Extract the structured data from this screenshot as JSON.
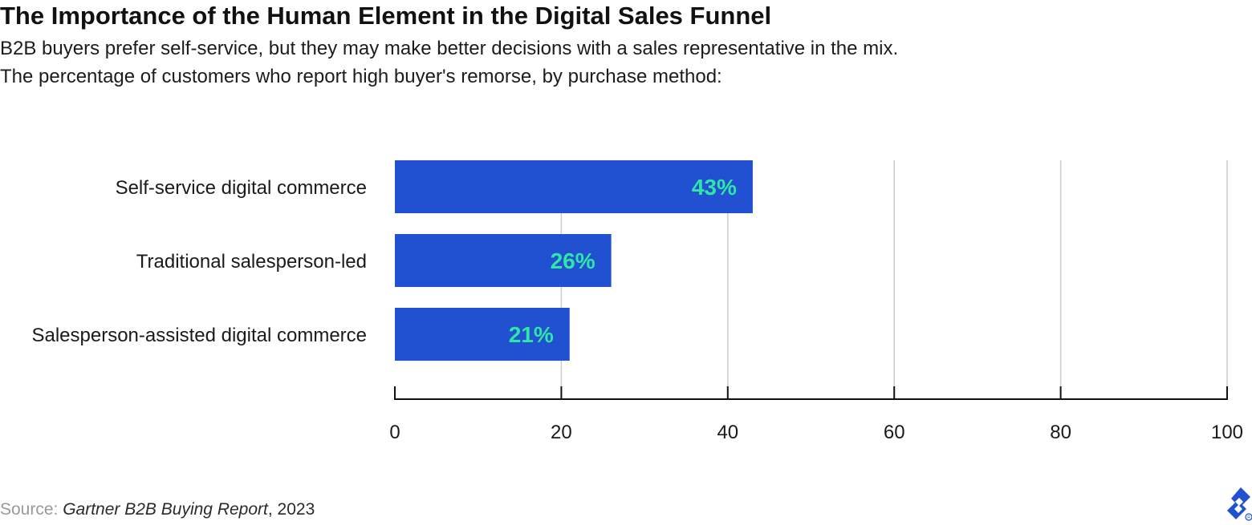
{
  "header": {
    "title": "The Importance of the Human Element in the Digital Sales Funnel",
    "subtitle_line1": "B2B buyers prefer self-service, but they may make better decisions with a sales representative in the mix.",
    "subtitle_line2": "The percentage of customers who report high buyer's remorse, by purchase method:"
  },
  "chart_data": {
    "type": "bar",
    "orientation": "horizontal",
    "categories": [
      "Self-service digital commerce",
      "Traditional salesperson-led",
      "Salesperson-assisted digital commerce"
    ],
    "values": [
      43,
      26,
      21
    ],
    "data_labels": [
      "43%",
      "26%",
      "21%"
    ],
    "xlim": [
      0,
      100
    ],
    "xticks": [
      0,
      20,
      40,
      60,
      80,
      100
    ],
    "grid": "vertical",
    "bar_color": "#2150d0",
    "label_color": "#2ee6a6",
    "grid_color": "#cccccc"
  },
  "footer": {
    "source_label": "Source:",
    "source_publication": "Gartner B2B Buying Report",
    "source_year": ", 2023",
    "logo_icon": "toptal-logo-icon"
  }
}
